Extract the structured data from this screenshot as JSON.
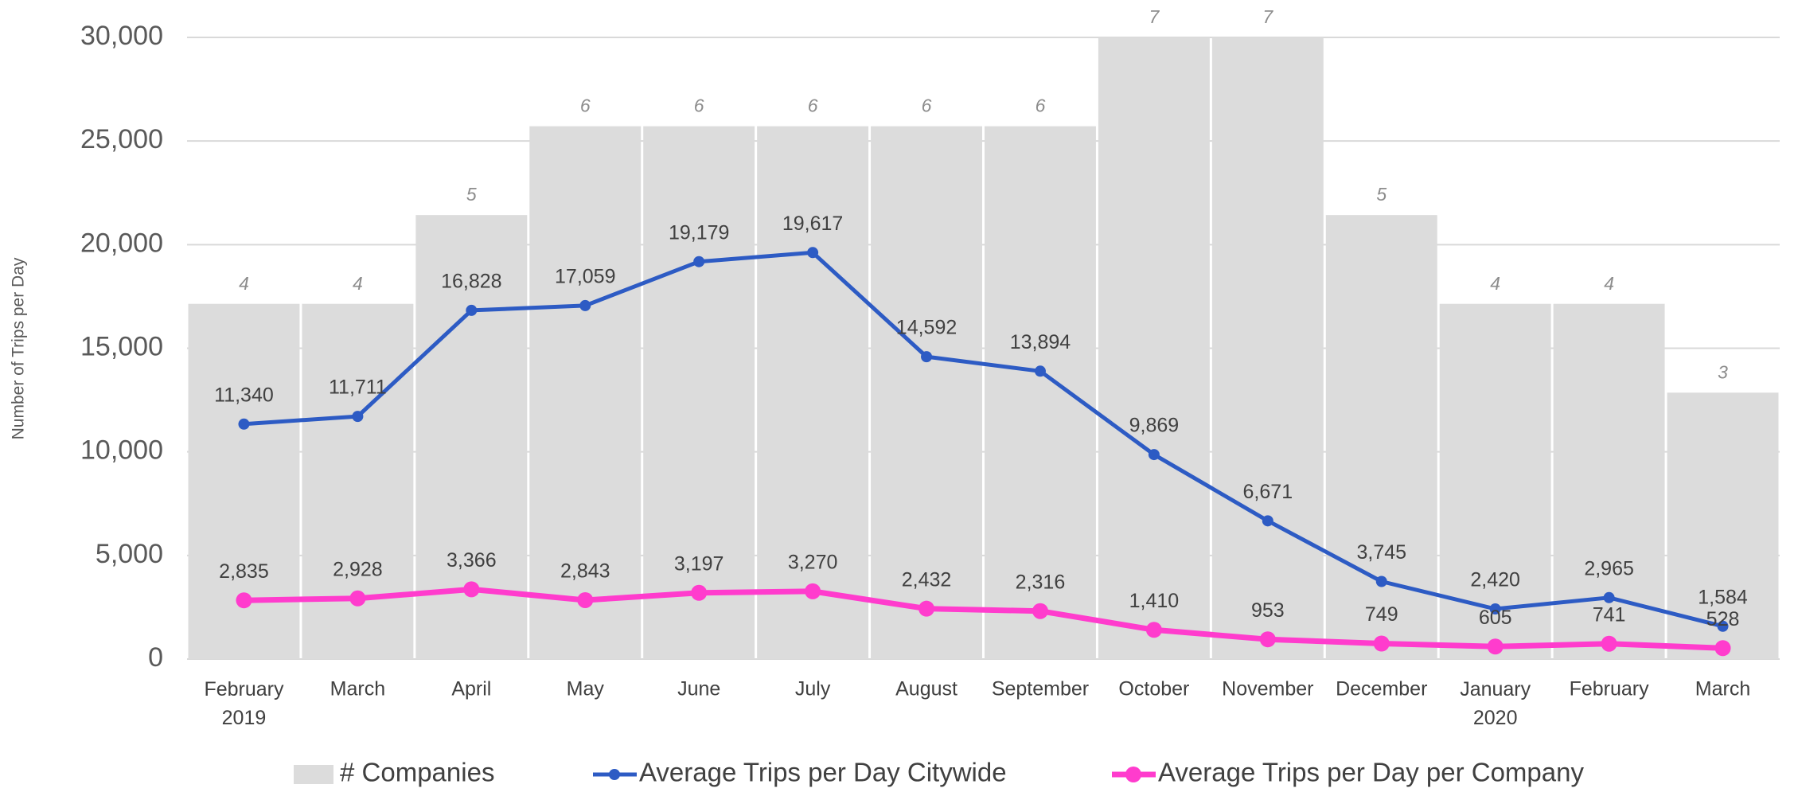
{
  "chart_data": {
    "type": "bar-line",
    "y_label": "Number of Trips per Day",
    "categories": [
      "February 2019",
      "March",
      "April",
      "May",
      "June",
      "July",
      "August",
      "September",
      "October",
      "November",
      "December",
      "January 2020",
      "February",
      "March"
    ],
    "series": [
      {
        "name": "# Companies",
        "type": "bar",
        "axis": "y2",
        "color": "#dcdcdc",
        "values": [
          4,
          4,
          5,
          6,
          6,
          6,
          6,
          6,
          7,
          7,
          5,
          4,
          4,
          3
        ]
      },
      {
        "name": "Average Trips per Day Citywide",
        "type": "line",
        "color": "#2d5bc4",
        "values": [
          11340,
          11711,
          16828,
          17059,
          19179,
          19617,
          14592,
          13894,
          9869,
          6671,
          3745,
          2420,
          2965,
          1584
        ],
        "value_labels": [
          "11,340",
          "11,711",
          "16,828",
          "17,059",
          "19,179",
          "19,617",
          "14,592",
          "13,894",
          "9,869",
          "6,671",
          "3,745",
          "2,420",
          "2,965",
          "1,584"
        ]
      },
      {
        "name": "Average Trips per Day per Company",
        "type": "line",
        "color": "#ff3ccd",
        "values": [
          2835,
          2928,
          3366,
          2843,
          3197,
          3270,
          2432,
          2316,
          1410,
          953,
          749,
          605,
          741,
          528
        ],
        "value_labels": [
          "2,835",
          "2,928",
          "3,366",
          "2,843",
          "3,197",
          "3,270",
          "2,432",
          "2,316",
          "1,410",
          "953",
          "749",
          "605",
          "741",
          "528"
        ]
      }
    ],
    "ylim": [
      0,
      30000
    ],
    "yticks": [
      0,
      {
        "value": 5000,
        "label": "5,000"
      },
      {
        "value": 10000,
        "label": "10,000"
      },
      {
        "value": 15000,
        "label": "15,000"
      },
      {
        "value": 20000,
        "label": "20,000"
      },
      {
        "value": 25000,
        "label": "25,000"
      },
      {
        "value": 30000,
        "label": "30,000"
      }
    ],
    "y2lim": [
      0,
      7
    ],
    "grid": true,
    "legend": "bottom"
  }
}
